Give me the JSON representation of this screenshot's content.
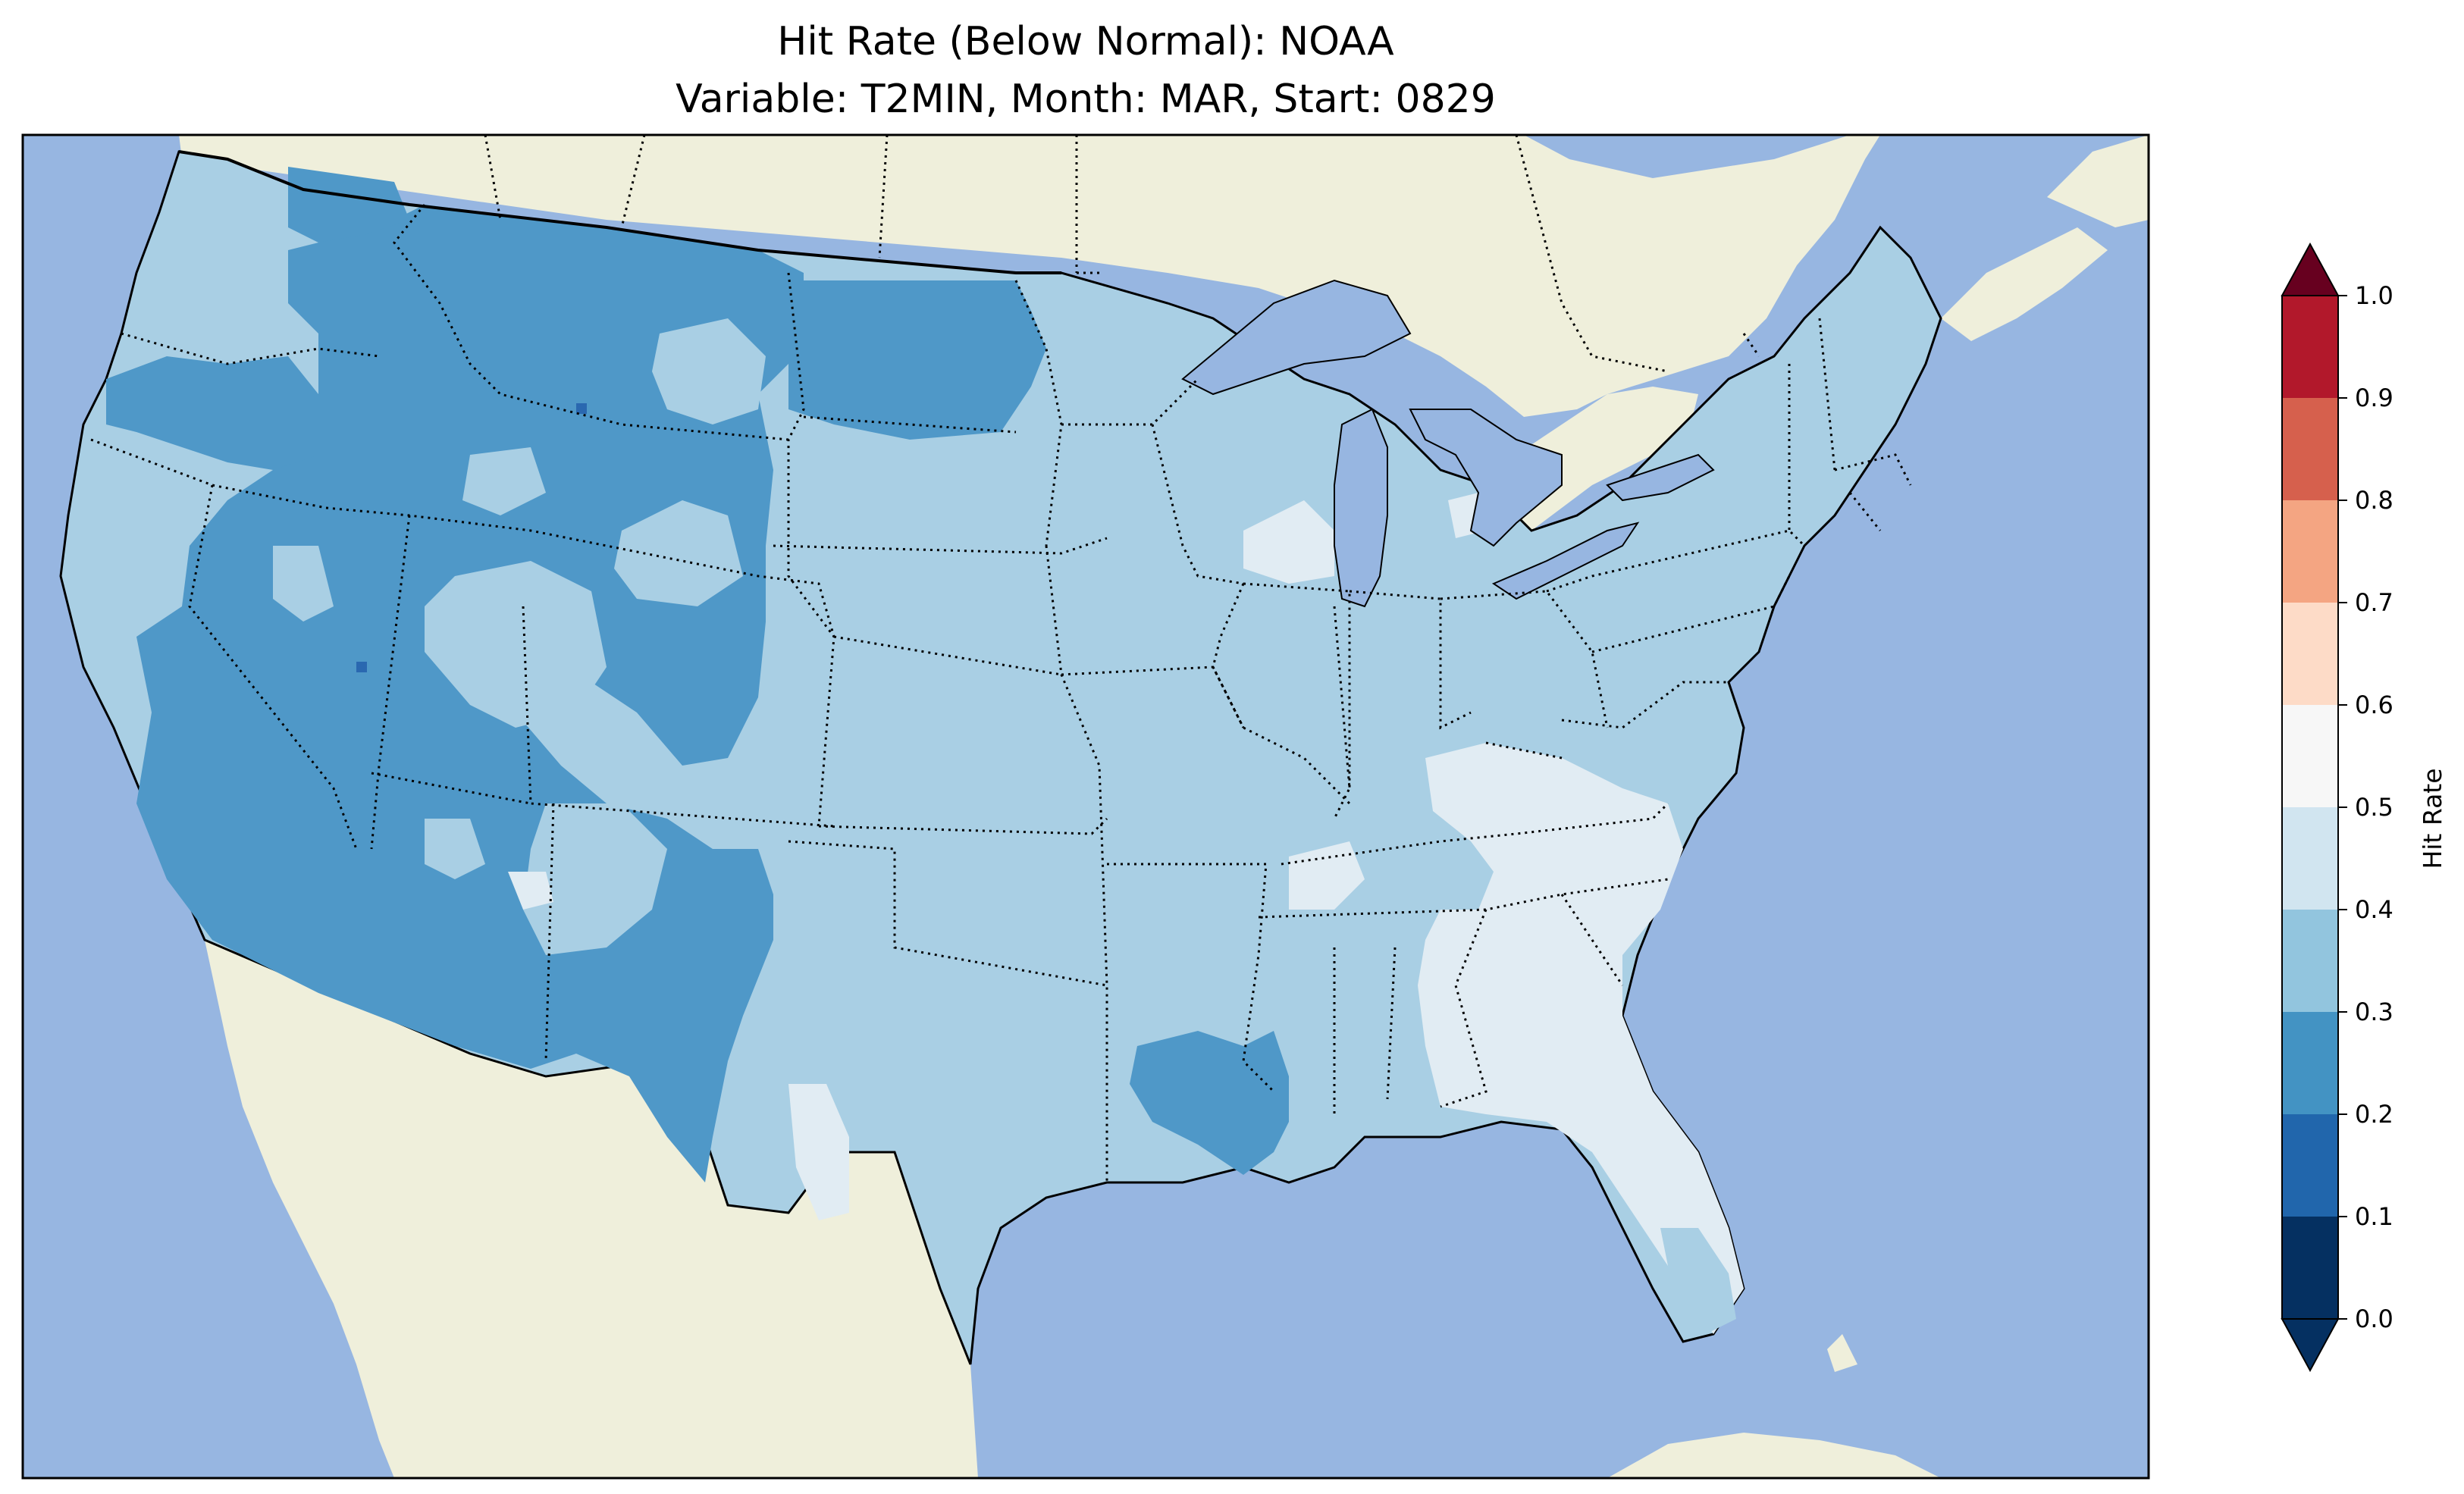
{
  "figure": {
    "title_line1": "Hit Rate (Below Normal): NOAA",
    "title_line2": "Variable: T2MIN, Month: MAR, Start: 0829"
  },
  "colorbar": {
    "label": "Hit Rate",
    "ticks": [
      "0.0",
      "0.1",
      "0.2",
      "0.3",
      "0.4",
      "0.5",
      "0.6",
      "0.7",
      "0.8",
      "0.9",
      "1.0"
    ],
    "bin_colors": [
      "#053061",
      "#2166ac",
      "#4393c3",
      "#92c5de",
      "#d1e5f0",
      "#f7f7f7",
      "#fddbc7",
      "#f4a582",
      "#d6604d",
      "#b2182b"
    ],
    "extend_low_color": "#053061",
    "extend_high_color": "#67001f"
  },
  "map_colors": {
    "ocean": "#97b6e1",
    "land": "#efefdb",
    "bin_0_1_2": "#4f98c8",
    "bin_0_3": "#a9cfe4",
    "bin_0_4": "#e1ecf3",
    "bin_0_15": "#2a68b0"
  },
  "chart_data": {
    "type": "heatmap",
    "xlabel": "",
    "ylabel": "",
    "scale_range": [
      0.0,
      1.0
    ],
    "bin_edges": [
      0.0,
      0.1,
      0.2,
      0.3,
      0.4,
      0.5,
      0.6,
      0.7,
      0.8,
      0.9,
      1.0
    ],
    "extend": "both",
    "regions": [
      {
        "area": "Pacific Northwest coast",
        "hit_rate_bin": "0.3-0.4"
      },
      {
        "area": "Northern Rockies / Montana",
        "hit_rate_bin": "0.2-0.3"
      },
      {
        "area": "North Dakota",
        "hit_rate_bin": "0.2-0.3"
      },
      {
        "area": "Great Basin / Nevada / Utah",
        "hit_rate_bin": "0.2-0.3"
      },
      {
        "area": "California",
        "hit_rate_bin": "0.2-0.3"
      },
      {
        "area": "Arizona / New Mexico",
        "hit_rate_bin": "0.2-0.3"
      },
      {
        "area": "Great Plains",
        "hit_rate_bin": "0.3-0.4"
      },
      {
        "area": "Midwest",
        "hit_rate_bin": "0.3-0.4"
      },
      {
        "area": "Louisiana / Mississippi pocket",
        "hit_rate_bin": "0.2-0.3"
      },
      {
        "area": "Southeast / Georgia / Carolinas",
        "hit_rate_bin": "0.4-0.5"
      },
      {
        "area": "Northeast",
        "hit_rate_bin": "0.3-0.4"
      },
      {
        "area": "Isolated grid cells (Idaho, Nevada)",
        "hit_rate_bin": "0.1-0.2"
      }
    ]
  }
}
